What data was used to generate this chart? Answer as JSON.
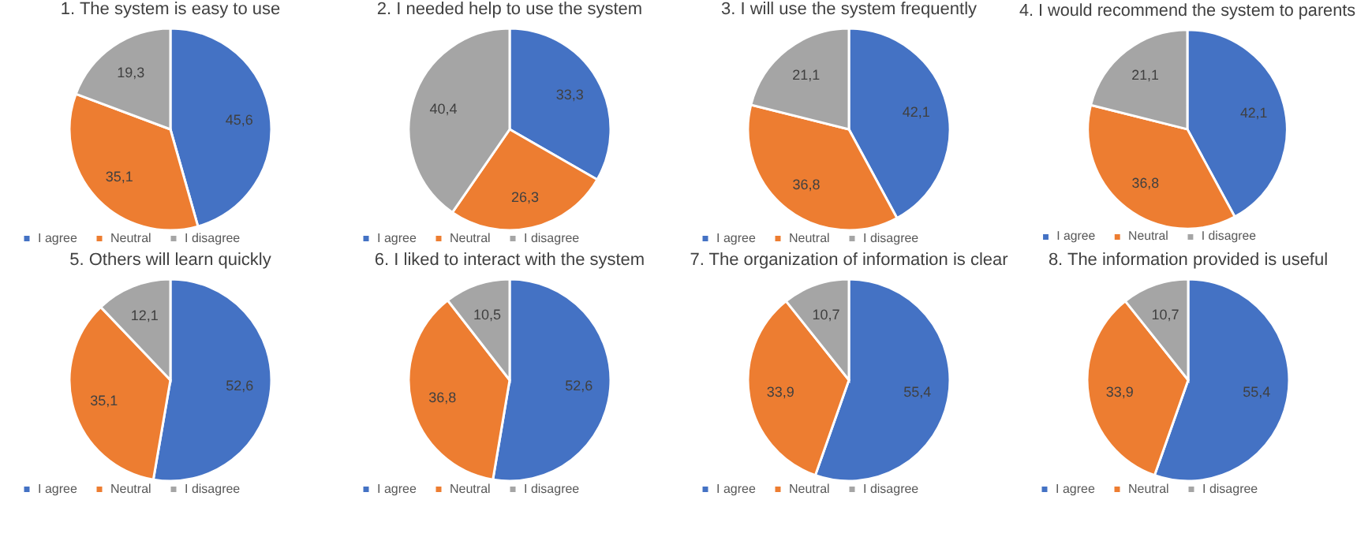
{
  "chart_data": [
    {
      "type": "pie",
      "title": "1. The system is easy to use",
      "categories": [
        "I agree",
        "Neutral",
        "I disagree"
      ],
      "values": [
        45.6,
        35.1,
        19.3
      ],
      "value_labels": [
        "45,6",
        "35,1",
        "19,3"
      ],
      "colors": [
        "#4472c4",
        "#ed7d31",
        "#a5a5a5"
      ],
      "legend": "bottom"
    },
    {
      "type": "pie",
      "title": "2. I needed help to use the system",
      "categories": [
        "I agree",
        "Neutral",
        "I disagree"
      ],
      "values": [
        33.3,
        26.3,
        40.4
      ],
      "value_labels": [
        "33,3",
        "26,3",
        "40,4"
      ],
      "colors": [
        "#4472c4",
        "#ed7d31",
        "#a5a5a5"
      ],
      "legend": "bottom"
    },
    {
      "type": "pie",
      "title": "3. I will use the system frequently",
      "categories": [
        "I agree",
        "Neutral",
        "I disagree"
      ],
      "values": [
        42.1,
        36.8,
        21.1
      ],
      "value_labels": [
        "42,1",
        "36,8",
        "21,1"
      ],
      "colors": [
        "#4472c4",
        "#ed7d31",
        "#a5a5a5"
      ],
      "legend": "bottom"
    },
    {
      "type": "pie",
      "title": "4. I would recommend the system to parents",
      "categories": [
        "I agree",
        "Neutral",
        "I disagree"
      ],
      "values": [
        42.1,
        36.8,
        21.1
      ],
      "value_labels": [
        "42,1",
        "36,8",
        "21,1"
      ],
      "colors": [
        "#4472c4",
        "#ed7d31",
        "#a5a5a5"
      ],
      "legend": "bottom"
    },
    {
      "type": "pie",
      "title": "5. Others will learn quickly",
      "categories": [
        "I agree",
        "Neutral",
        "I disagree"
      ],
      "values": [
        52.6,
        35.1,
        12.1
      ],
      "value_labels": [
        "52,6",
        "35,1",
        "12,1"
      ],
      "colors": [
        "#4472c4",
        "#ed7d31",
        "#a5a5a5"
      ],
      "legend": "bottom"
    },
    {
      "type": "pie",
      "title": "6. I liked to interact with the system",
      "categories": [
        "I agree",
        "Neutral",
        "I disagree"
      ],
      "values": [
        52.6,
        36.8,
        10.5
      ],
      "value_labels": [
        "52,6",
        "36,8",
        "10,5"
      ],
      "colors": [
        "#4472c4",
        "#ed7d31",
        "#a5a5a5"
      ],
      "legend": "bottom"
    },
    {
      "type": "pie",
      "title": "7. The organization of information is clear",
      "categories": [
        "I agree",
        "Neutral",
        "I disagree"
      ],
      "values": [
        55.4,
        33.9,
        10.7
      ],
      "value_labels": [
        "55,4",
        "33,9",
        "10,7"
      ],
      "colors": [
        "#4472c4",
        "#ed7d31",
        "#a5a5a5"
      ],
      "legend": "bottom"
    },
    {
      "type": "pie",
      "title": "8. The information provided is useful",
      "categories": [
        "I agree",
        "Neutral",
        "I disagree"
      ],
      "values": [
        55.4,
        33.9,
        10.7
      ],
      "value_labels": [
        "55,4",
        "33,9",
        "10,7"
      ],
      "colors": [
        "#4472c4",
        "#ed7d31",
        "#a5a5a5"
      ],
      "legend": "bottom"
    }
  ]
}
